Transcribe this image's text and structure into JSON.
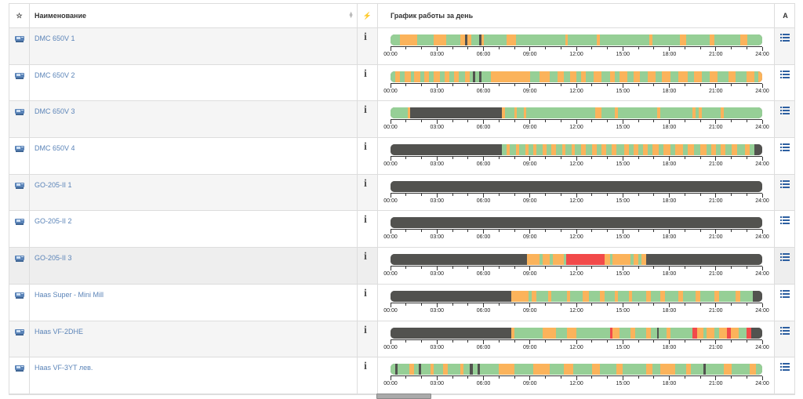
{
  "header": {
    "star": "☆",
    "name": "Наименование",
    "action": "⚡",
    "chart": "График работы за день",
    "last": "A"
  },
  "colors": {
    "green": "#96cf96",
    "orange": "#fbb35b",
    "dark": "#52524f",
    "red": "#f24a4a",
    "link": "#5b84b8"
  },
  "time_labels": [
    "00:00",
    "03:00",
    "06:00",
    "09:00",
    "12:00",
    "15:00",
    "18:00",
    "21:00",
    "24:00"
  ],
  "info_symbol": "i",
  "rows": [
    {
      "name": "DMC 650V 1",
      "segments": [
        [
          "g",
          0,
          0.6
        ],
        [
          "o",
          0.6,
          1.7
        ],
        [
          "g",
          1.7,
          2.8
        ],
        [
          "o",
          2.8,
          3.6
        ],
        [
          "g",
          3.6,
          4.5
        ],
        [
          "o",
          4.5,
          4.8
        ],
        [
          "d",
          4.8,
          4.95
        ],
        [
          "o",
          4.95,
          5.2
        ],
        [
          "g",
          5.2,
          5.7
        ],
        [
          "d",
          5.7,
          5.85
        ],
        [
          "o",
          5.85,
          6.0
        ],
        [
          "g",
          6.0,
          7.5
        ],
        [
          "o",
          7.5,
          8.1
        ],
        [
          "g",
          8.1,
          11.3
        ],
        [
          "o",
          11.3,
          11.45
        ],
        [
          "g",
          11.45,
          13.3
        ],
        [
          "o",
          13.3,
          13.5
        ],
        [
          "g",
          13.5,
          16.7
        ],
        [
          "o",
          16.7,
          16.9
        ],
        [
          "g",
          16.9,
          18.7
        ],
        [
          "o",
          18.7,
          19.1
        ],
        [
          "g",
          19.1,
          20.6
        ],
        [
          "o",
          20.6,
          20.9
        ],
        [
          "g",
          20.9,
          22.6
        ],
        [
          "o",
          22.6,
          23.05
        ],
        [
          "g",
          23.05,
          24
        ]
      ]
    },
    {
      "name": "DMC 650V 2",
      "segments": [
        [
          "g",
          0,
          0.3
        ],
        [
          "o",
          0.3,
          0.6
        ],
        [
          "g",
          0.6,
          0.9
        ],
        [
          "o",
          0.9,
          1.3
        ],
        [
          "g",
          1.3,
          1.5
        ],
        [
          "o",
          1.5,
          1.9
        ],
        [
          "g",
          1.9,
          2.2
        ],
        [
          "o",
          2.2,
          2.5
        ],
        [
          "g",
          2.5,
          2.8
        ],
        [
          "o",
          2.8,
          3.2
        ],
        [
          "g",
          3.2,
          3.5
        ],
        [
          "o",
          3.5,
          3.8
        ],
        [
          "g",
          3.8,
          4.1
        ],
        [
          "o",
          4.1,
          4.4
        ],
        [
          "g",
          4.4,
          4.8
        ],
        [
          "o",
          4.8,
          5.1
        ],
        [
          "g",
          5.1,
          5.3
        ],
        [
          "d",
          5.3,
          5.45
        ],
        [
          "g",
          5.45,
          5.7
        ],
        [
          "d",
          5.7,
          5.85
        ],
        [
          "g",
          5.85,
          6.5
        ],
        [
          "o",
          6.5,
          9.0
        ],
        [
          "g",
          9.0,
          9.6
        ],
        [
          "o",
          9.6,
          10.3
        ],
        [
          "g",
          10.3,
          10.8
        ],
        [
          "o",
          10.8,
          11.2
        ],
        [
          "g",
          11.2,
          11.6
        ],
        [
          "o",
          11.6,
          12.0
        ],
        [
          "g",
          12.0,
          12.3
        ],
        [
          "o",
          12.3,
          12.6
        ],
        [
          "g",
          12.6,
          13.1
        ],
        [
          "o",
          13.1,
          13.6
        ],
        [
          "g",
          13.6,
          14.2
        ],
        [
          "o",
          14.2,
          14.5
        ],
        [
          "g",
          14.5,
          14.8
        ],
        [
          "o",
          14.8,
          15.3
        ],
        [
          "g",
          15.3,
          15.7
        ],
        [
          "o",
          15.7,
          16.1
        ],
        [
          "g",
          16.1,
          16.6
        ],
        [
          "o",
          16.6,
          17.1
        ],
        [
          "g",
          17.1,
          17.5
        ],
        [
          "o",
          17.5,
          18.1
        ],
        [
          "g",
          18.1,
          18.6
        ],
        [
          "o",
          18.6,
          19.2
        ],
        [
          "g",
          19.2,
          19.6
        ],
        [
          "o",
          19.6,
          20.1
        ],
        [
          "g",
          20.1,
          20.6
        ],
        [
          "o",
          20.6,
          21.1
        ],
        [
          "g",
          21.1,
          21.8
        ],
        [
          "o",
          21.8,
          22.3
        ],
        [
          "g",
          22.3,
          23.0
        ],
        [
          "o",
          23.0,
          23.5
        ],
        [
          "g",
          23.5,
          23.75
        ],
        [
          "o",
          23.75,
          24
        ]
      ]
    },
    {
      "name": "DMC 650V 3",
      "segments": [
        [
          "g",
          0,
          1.1
        ],
        [
          "o",
          1.1,
          1.25
        ],
        [
          "d",
          1.25,
          7.2
        ],
        [
          "o",
          7.2,
          7.4
        ],
        [
          "g",
          7.4,
          8.0
        ],
        [
          "o",
          8.0,
          8.15
        ],
        [
          "g",
          8.15,
          8.6
        ],
        [
          "o",
          8.6,
          8.75
        ],
        [
          "g",
          8.75,
          13.2
        ],
        [
          "o",
          13.2,
          13.6
        ],
        [
          "g",
          13.6,
          14.5
        ],
        [
          "o",
          14.5,
          14.7
        ],
        [
          "g",
          14.7,
          17.2
        ],
        [
          "o",
          17.2,
          17.4
        ],
        [
          "g",
          17.4,
          19.5
        ],
        [
          "o",
          19.5,
          19.7
        ],
        [
          "g",
          19.7,
          19.9
        ],
        [
          "o",
          19.9,
          20.1
        ],
        [
          "g",
          20.1,
          21.3
        ],
        [
          "o",
          21.3,
          21.5
        ],
        [
          "g",
          21.5,
          24
        ]
      ]
    },
    {
      "name": "DMC 650V 4",
      "segments": [
        [
          "d",
          0,
          7.2
        ],
        [
          "g",
          7.2,
          7.5
        ],
        [
          "o",
          7.5,
          7.7
        ],
        [
          "g",
          7.7,
          8.1
        ],
        [
          "o",
          8.1,
          8.3
        ],
        [
          "g",
          8.3,
          8.7
        ],
        [
          "o",
          8.7,
          8.9
        ],
        [
          "g",
          8.9,
          9.2
        ],
        [
          "o",
          9.2,
          9.4
        ],
        [
          "g",
          9.4,
          9.8
        ],
        [
          "o",
          9.8,
          10.1
        ],
        [
          "g",
          10.1,
          10.4
        ],
        [
          "o",
          10.4,
          10.7
        ],
        [
          "g",
          10.7,
          11.1
        ],
        [
          "o",
          11.1,
          11.3
        ],
        [
          "g",
          11.3,
          11.7
        ],
        [
          "o",
          11.7,
          11.9
        ],
        [
          "g",
          11.9,
          12.3
        ],
        [
          "o",
          12.3,
          12.6
        ],
        [
          "g",
          12.6,
          13.0
        ],
        [
          "o",
          13.0,
          13.3
        ],
        [
          "g",
          13.3,
          13.6
        ],
        [
          "o",
          13.6,
          13.9
        ],
        [
          "g",
          13.9,
          14.3
        ],
        [
          "o",
          14.3,
          14.6
        ],
        [
          "g",
          14.6,
          15.1
        ],
        [
          "o",
          15.1,
          15.4
        ],
        [
          "g",
          15.4,
          15.7
        ],
        [
          "o",
          15.7,
          16.0
        ],
        [
          "g",
          16.0,
          16.3
        ],
        [
          "o",
          16.3,
          16.6
        ],
        [
          "g",
          16.6,
          16.9
        ],
        [
          "o",
          16.9,
          17.3
        ],
        [
          "g",
          17.3,
          17.6
        ],
        [
          "o",
          17.6,
          18.1
        ],
        [
          "g",
          18.1,
          18.4
        ],
        [
          "o",
          18.4,
          18.9
        ],
        [
          "g",
          18.9,
          19.2
        ],
        [
          "o",
          19.2,
          19.6
        ],
        [
          "g",
          19.6,
          20.0
        ],
        [
          "o",
          20.0,
          20.4
        ],
        [
          "g",
          20.4,
          20.7
        ],
        [
          "o",
          20.7,
          21.0
        ],
        [
          "g",
          21.0,
          21.3
        ],
        [
          "o",
          21.3,
          21.6
        ],
        [
          "g",
          21.6,
          22.0
        ],
        [
          "o",
          22.0,
          22.4
        ],
        [
          "g",
          22.4,
          22.9
        ],
        [
          "o",
          22.9,
          23.2
        ],
        [
          "g",
          23.2,
          23.5
        ],
        [
          "d",
          23.5,
          24
        ]
      ]
    },
    {
      "name": "GO-205-II 1",
      "segments": [
        [
          "d",
          0,
          24
        ]
      ]
    },
    {
      "name": "GO-205-II 2",
      "segments": [
        [
          "d",
          0,
          24
        ]
      ]
    },
    {
      "name": "GO-205-II 3",
      "segments": [
        [
          "d",
          0,
          8.8
        ],
        [
          "o",
          8.8,
          9.6
        ],
        [
          "g",
          9.6,
          9.8
        ],
        [
          "o",
          9.8,
          10.3
        ],
        [
          "g",
          10.3,
          10.5
        ],
        [
          "o",
          10.5,
          11.2
        ],
        [
          "g",
          11.2,
          11.35
        ],
        [
          "r",
          11.35,
          13.8
        ],
        [
          "o",
          13.8,
          14.2
        ],
        [
          "g",
          14.2,
          14.35
        ],
        [
          "o",
          14.35,
          15.5
        ],
        [
          "g",
          15.5,
          15.7
        ],
        [
          "o",
          15.7,
          16.0
        ],
        [
          "g",
          16.0,
          16.2
        ],
        [
          "o",
          16.2,
          16.5
        ],
        [
          "d",
          16.5,
          24
        ]
      ]
    },
    {
      "name": "Haas Super - Mini Mill",
      "segments": [
        [
          "d",
          0,
          7.8
        ],
        [
          "o",
          7.8,
          8.9
        ],
        [
          "g",
          8.9,
          9.1
        ],
        [
          "o",
          9.1,
          9.4
        ],
        [
          "g",
          9.4,
          10.2
        ],
        [
          "o",
          10.2,
          10.4
        ],
        [
          "g",
          10.4,
          11.4
        ],
        [
          "o",
          11.4,
          11.6
        ],
        [
          "g",
          11.6,
          12.4
        ],
        [
          "o",
          12.4,
          12.8
        ],
        [
          "g",
          12.8,
          13.5
        ],
        [
          "o",
          13.5,
          13.8
        ],
        [
          "g",
          13.8,
          14.5
        ],
        [
          "o",
          14.5,
          14.7
        ],
        [
          "g",
          14.7,
          15.4
        ],
        [
          "o",
          15.4,
          15.6
        ],
        [
          "g",
          15.6,
          16.5
        ],
        [
          "o",
          16.5,
          16.8
        ],
        [
          "g",
          16.8,
          17.4
        ],
        [
          "o",
          17.4,
          17.7
        ],
        [
          "g",
          17.7,
          18.6
        ],
        [
          "o",
          18.6,
          18.9
        ],
        [
          "g",
          18.9,
          19.7
        ],
        [
          "o",
          19.7,
          20.0
        ],
        [
          "g",
          20.0,
          20.9
        ],
        [
          "o",
          20.9,
          21.2
        ],
        [
          "g",
          21.2,
          22.3
        ],
        [
          "o",
          22.3,
          22.6
        ],
        [
          "g",
          22.6,
          23.4
        ],
        [
          "d",
          23.4,
          24
        ]
      ]
    },
    {
      "name": "Haas VF-2DHE",
      "segments": [
        [
          "d",
          0,
          7.8
        ],
        [
          "o",
          7.8,
          8.0
        ],
        [
          "g",
          8.0,
          9.8
        ],
        [
          "o",
          9.8,
          10.7
        ],
        [
          "g",
          10.7,
          11.4
        ],
        [
          "o",
          11.4,
          12.0
        ],
        [
          "g",
          12.0,
          14.2
        ],
        [
          "r",
          14.2,
          14.35
        ],
        [
          "o",
          14.35,
          14.8
        ],
        [
          "g",
          14.8,
          15.5
        ],
        [
          "o",
          15.5,
          15.8
        ],
        [
          "g",
          15.8,
          16.5
        ],
        [
          "o",
          16.5,
          16.8
        ],
        [
          "g",
          16.8,
          17.2
        ],
        [
          "d",
          17.2,
          17.3
        ],
        [
          "g",
          17.3,
          17.8
        ],
        [
          "o",
          17.8,
          18.1
        ],
        [
          "g",
          18.1,
          19.5
        ],
        [
          "r",
          19.5,
          19.8
        ],
        [
          "o",
          19.8,
          20.2
        ],
        [
          "g",
          20.2,
          20.4
        ],
        [
          "o",
          20.4,
          20.9
        ],
        [
          "g",
          20.9,
          21.2
        ],
        [
          "o",
          21.2,
          21.7
        ],
        [
          "r",
          21.7,
          21.95
        ],
        [
          "o",
          21.95,
          22.5
        ],
        [
          "g",
          22.5,
          23.0
        ],
        [
          "r",
          23.0,
          23.3
        ],
        [
          "d",
          23.3,
          24
        ]
      ]
    },
    {
      "name": "Haas VF-3YT лев.",
      "segments": [
        [
          "g",
          0,
          0.3
        ],
        [
          "d",
          0.3,
          0.45
        ],
        [
          "g",
          0.45,
          1.2
        ],
        [
          "o",
          1.2,
          1.5
        ],
        [
          "g",
          1.5,
          1.8
        ],
        [
          "d",
          1.8,
          1.95
        ],
        [
          "g",
          1.95,
          2.6
        ],
        [
          "o",
          2.6,
          2.8
        ],
        [
          "g",
          2.8,
          3.4
        ],
        [
          "o",
          3.4,
          3.7
        ],
        [
          "g",
          3.7,
          4.5
        ],
        [
          "o",
          4.5,
          4.7
        ],
        [
          "g",
          4.7,
          5.1
        ],
        [
          "d",
          5.1,
          5.3
        ],
        [
          "g",
          5.3,
          5.6
        ],
        [
          "d",
          5.6,
          5.75
        ],
        [
          "g",
          5.75,
          7.0
        ],
        [
          "o",
          7.0,
          8.0
        ],
        [
          "g",
          8.0,
          9.2
        ],
        [
          "o",
          9.2,
          10.3
        ],
        [
          "g",
          10.3,
          11.2
        ],
        [
          "o",
          11.2,
          11.8
        ],
        [
          "g",
          11.8,
          13.0
        ],
        [
          "o",
          13.0,
          13.5
        ],
        [
          "g",
          13.5,
          14.6
        ],
        [
          "o",
          14.6,
          15.0
        ],
        [
          "g",
          15.0,
          16.5
        ],
        [
          "o",
          16.5,
          16.9
        ],
        [
          "g",
          16.9,
          17.4
        ],
        [
          "o",
          17.4,
          18.4
        ],
        [
          "g",
          18.4,
          19.1
        ],
        [
          "o",
          19.1,
          19.4
        ],
        [
          "g",
          19.4,
          20.2
        ],
        [
          "d",
          20.2,
          20.35
        ],
        [
          "g",
          20.35,
          21.5
        ],
        [
          "o",
          21.5,
          22.0
        ],
        [
          "g",
          22.0,
          23.2
        ],
        [
          "o",
          23.2,
          23.6
        ],
        [
          "g",
          23.6,
          24
        ]
      ]
    }
  ]
}
